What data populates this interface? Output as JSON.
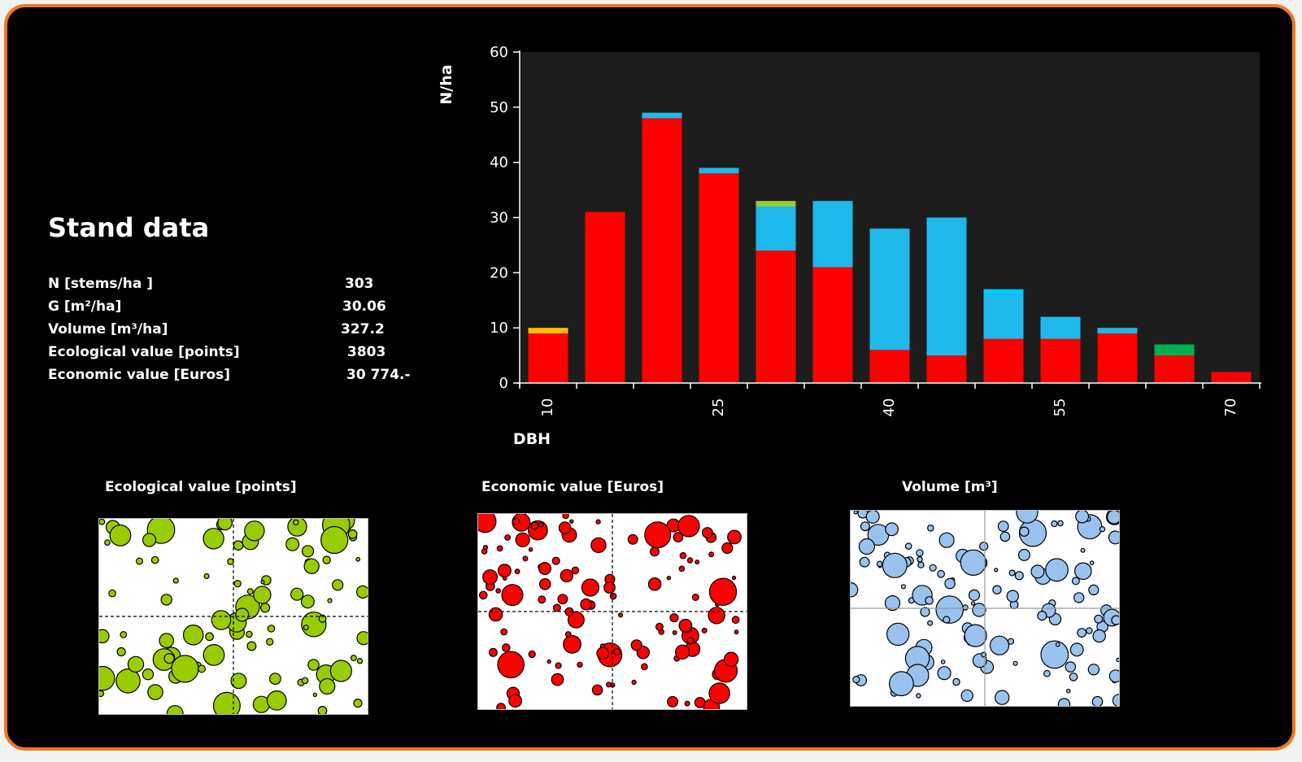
{
  "stand": {
    "title": "Stand data",
    "rows": [
      {
        "label": "N [stems/ha ]",
        "value": "303"
      },
      {
        "label": "G [m²/ha]",
        "value": "30.06"
      },
      {
        "label": "Volume [m³/ha]",
        "value": "327.2"
      },
      {
        "label": "Ecological value [points]",
        "value": "3803"
      },
      {
        "label": "Economic value [Euros]",
        "value": "30 774.-"
      }
    ]
  },
  "chart_data": {
    "type": "bar",
    "stacked": true,
    "ylabel": "N/ha",
    "xlabel": "DBH",
    "ylim": [
      0,
      60
    ],
    "yticks": [
      "0",
      "10",
      "20",
      "30",
      "40",
      "50",
      "60"
    ],
    "categories": [
      "10",
      "15",
      "20",
      "25",
      "30",
      "35",
      "40",
      "45",
      "50",
      "55",
      "60",
      "65",
      "70"
    ],
    "xtick_labels": [
      "10",
      "25",
      "40",
      "55",
      "70"
    ],
    "grid": false,
    "series": [
      {
        "color": "#ff0000",
        "values": [
          9,
          31,
          48,
          38,
          24,
          21,
          6,
          5,
          8,
          8,
          9,
          5,
          2
        ]
      },
      {
        "color": "#1fb8ea",
        "values": [
          0,
          0,
          1,
          1,
          8,
          12,
          22,
          25,
          8,
          4,
          1,
          0,
          0
        ]
      },
      {
        "color": "#00ccff",
        "values": [
          0,
          0,
          0,
          0,
          0,
          0,
          0,
          0,
          1,
          0,
          0,
          0,
          0
        ]
      },
      {
        "color": "#99cc33",
        "values": [
          0,
          0,
          0,
          0,
          1,
          0,
          0,
          0,
          0,
          0,
          0,
          0,
          0
        ]
      },
      {
        "color": "#00b050",
        "values": [
          0,
          0,
          0,
          0,
          0,
          0,
          0,
          0,
          0,
          0,
          0,
          2,
          0
        ]
      },
      {
        "color": "#ffc000",
        "values": [
          1,
          0,
          0,
          0,
          0,
          0,
          0,
          0,
          0,
          0,
          0,
          0,
          0
        ]
      }
    ]
  },
  "maps": [
    {
      "title": "Ecological value [points]",
      "fill": "#99cc00",
      "grid": "dashed"
    },
    {
      "title": "Economic value [Euros]",
      "fill": "#ff0000",
      "grid": "dashed"
    },
    {
      "title": "Volume [m³]",
      "fill": "#99c2ee",
      "grid": "solid"
    }
  ],
  "colors": {
    "frame": "#f07820",
    "background": "#000000",
    "plot_area": "#1c1c1c"
  }
}
